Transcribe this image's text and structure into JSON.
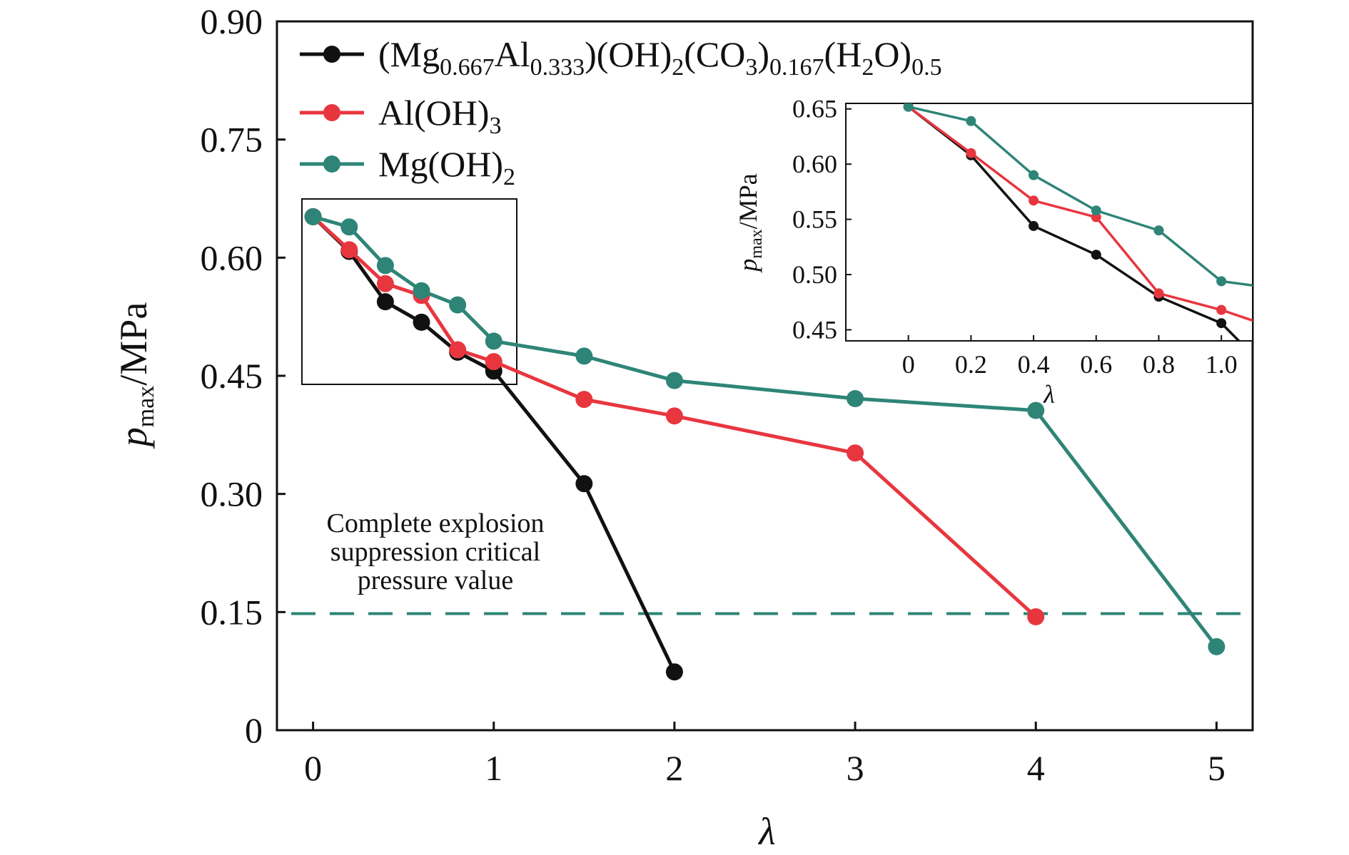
{
  "chart_data": {
    "type": "line",
    "xlabel": "λ",
    "ylabel": {
      "base": "p",
      "sub": "max",
      "rest": "/MPa"
    },
    "xlim": [
      -0.2,
      5.2
    ],
    "ylim": [
      0,
      0.9
    ],
    "x_ticks": [
      "0",
      "1",
      "2",
      "3",
      "4",
      "5"
    ],
    "y_ticks": [
      "0",
      "0.15",
      "0.30",
      "0.45",
      "0.60",
      "0.75",
      "0.90"
    ],
    "legend_position": "top-left",
    "series": [
      {
        "name": "(Mg0.667Al0.333)(OH)2(CO3)0.167(H2O)0.5",
        "color": "#111111",
        "x": [
          0,
          0.2,
          0.4,
          0.6,
          0.8,
          1.0,
          1.5,
          2.0
        ],
        "y": [
          0.652,
          0.608,
          0.544,
          0.518,
          0.48,
          0.456,
          0.313,
          0.074
        ]
      },
      {
        "name": "Al(OH)3",
        "color": "#e8363f",
        "x": [
          0,
          0.2,
          0.4,
          0.6,
          0.8,
          1.0,
          1.5,
          2.0,
          3.0,
          4.0
        ],
        "y": [
          0.652,
          0.61,
          0.567,
          0.552,
          0.483,
          0.468,
          0.42,
          0.399,
          0.352,
          0.144
        ]
      },
      {
        "name": "Mg(OH)2",
        "color": "#2e8577",
        "x": [
          0,
          0.2,
          0.4,
          0.6,
          0.8,
          1.0,
          1.5,
          2.0,
          3.0,
          4.0,
          5.0
        ],
        "y": [
          0.652,
          0.639,
          0.59,
          0.558,
          0.54,
          0.494,
          0.475,
          0.444,
          0.421,
          0.406,
          0.106
        ]
      }
    ],
    "reference_line": {
      "y": 0.148,
      "color": "#2e8577",
      "style": "dashed"
    },
    "annotation": [
      "Complete explosion",
      "suppression critical",
      "pressure value"
    ],
    "inset": {
      "xlim": [
        -0.2,
        1.1
      ],
      "ylim": [
        0.44,
        0.655
      ],
      "x_ticks": [
        "0",
        "0.2",
        "0.4",
        "0.6",
        "0.8",
        "1.0"
      ],
      "y_ticks": [
        "0.45",
        "0.50",
        "0.55",
        "0.60",
        "0.65"
      ],
      "xlabel": "λ"
    }
  }
}
